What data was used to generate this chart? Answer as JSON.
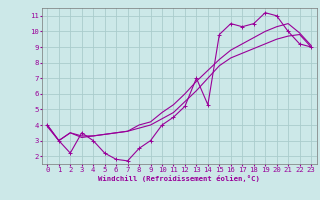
{
  "title": "",
  "xlabel": "Windchill (Refroidissement éolien,°C)",
  "bg_color": "#cce8e8",
  "grid_color": "#aacccc",
  "line_color": "#990099",
  "x": [
    0,
    1,
    2,
    3,
    4,
    5,
    6,
    7,
    8,
    9,
    10,
    11,
    12,
    13,
    14,
    15,
    16,
    17,
    18,
    19,
    20,
    21,
    22,
    23
  ],
  "line1": [
    4.0,
    3.0,
    2.2,
    3.5,
    3.0,
    2.2,
    1.8,
    1.7,
    2.5,
    3.0,
    4.0,
    4.5,
    5.2,
    7.0,
    5.3,
    9.8,
    10.5,
    10.3,
    10.5,
    11.2,
    11.0,
    10.0,
    9.2,
    9.0
  ],
  "line2": [
    4.0,
    3.0,
    3.5,
    3.3,
    3.3,
    3.4,
    3.5,
    3.6,
    3.8,
    4.0,
    4.4,
    4.8,
    5.5,
    6.2,
    7.0,
    7.8,
    8.3,
    8.6,
    8.9,
    9.2,
    9.5,
    9.7,
    9.8,
    9.0
  ],
  "line3": [
    3.9,
    3.0,
    3.5,
    3.2,
    3.3,
    3.4,
    3.5,
    3.6,
    4.0,
    4.2,
    4.8,
    5.3,
    6.0,
    6.8,
    7.5,
    8.2,
    8.8,
    9.2,
    9.6,
    10.0,
    10.3,
    10.5,
    9.9,
    9.1
  ],
  "ylim": [
    1.5,
    11.5
  ],
  "xlim": [
    -0.5,
    23.5
  ],
  "yticks": [
    2,
    3,
    4,
    5,
    6,
    7,
    8,
    9,
    10,
    11
  ],
  "xticks": [
    0,
    1,
    2,
    3,
    4,
    5,
    6,
    7,
    8,
    9,
    10,
    11,
    12,
    13,
    14,
    15,
    16,
    17,
    18,
    19,
    20,
    21,
    22,
    23
  ],
  "xlabel_fontsize": 5.2,
  "tick_fontsize": 5.2,
  "line_width": 0.8,
  "marker_size": 3.0
}
